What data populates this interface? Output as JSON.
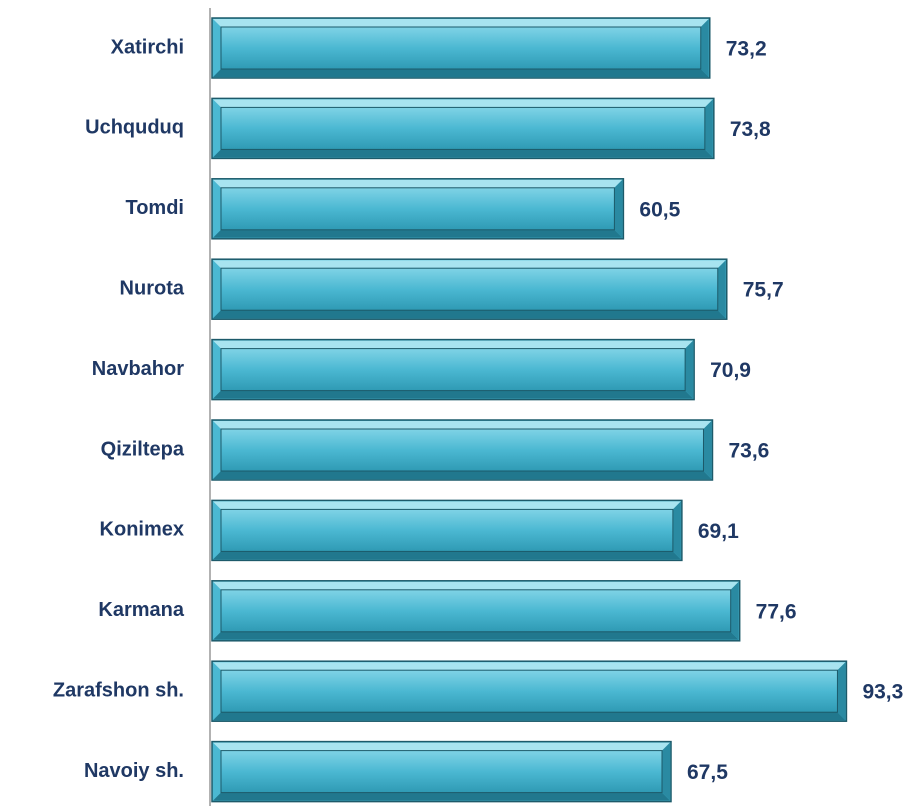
{
  "chart_data": {
    "type": "barh",
    "categories": [
      "Xatirchi",
      "Uchquduq",
      "Tomdi",
      "Nurota",
      "Navbahor",
      "Qiziltepa",
      "Konimex",
      "Karmana",
      "Zarafshon sh.",
      "Navoiy sh."
    ],
    "values": [
      73.2,
      73.8,
      60.5,
      75.7,
      70.9,
      73.6,
      69.1,
      77.6,
      93.3,
      67.5
    ],
    "value_labels": [
      "73,2",
      "73,8",
      "60,5",
      "75,7",
      "70,9",
      "73,6",
      "69,1",
      "77,6",
      "93,3",
      "67,5"
    ],
    "color": "#4bb8d2",
    "xlim": [
      0,
      100
    ]
  }
}
